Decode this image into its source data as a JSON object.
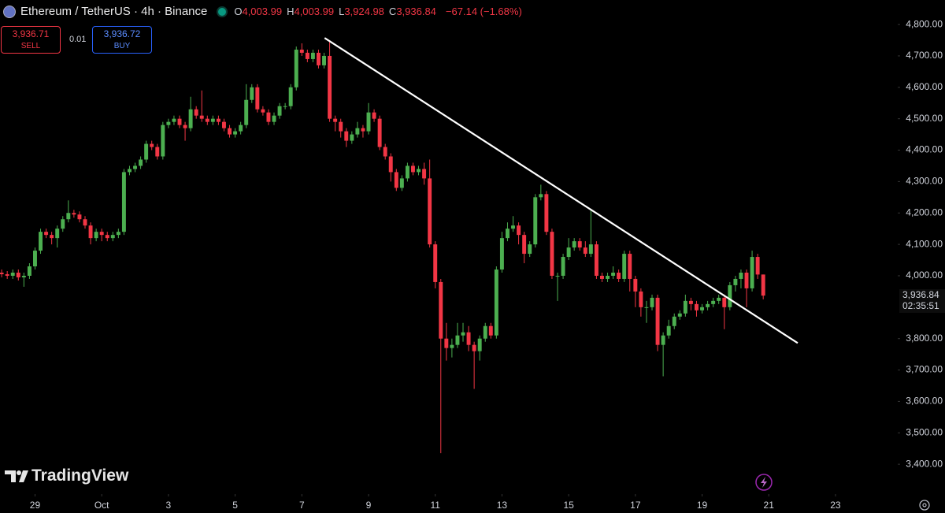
{
  "header": {
    "title": "Ethereum / TetherUS · 4h · Binance",
    "ohlc": [
      {
        "key": "O",
        "value": "4,003.99"
      },
      {
        "key": "H",
        "value": "4,003.99"
      },
      {
        "key": "L",
        "value": "3,924.98"
      },
      {
        "key": "C",
        "value": "3,936.84"
      }
    ],
    "change": "−67.14 (−1.68%)"
  },
  "trade": {
    "sell_price": "3,936.71",
    "sell_label": "SELL",
    "quantity": "0.01",
    "buy_price": "3,936.72",
    "buy_label": "BUY"
  },
  "watermark": "TradingView",
  "last_price_label": {
    "price": "3,936.84",
    "countdown": "02:35:51"
  },
  "chart_data": {
    "type": "candlestick",
    "up_color": "#4caf50",
    "down_color": "#f23645",
    "open": [
      4010,
      4005,
      4000,
      4010,
      3995,
      4000,
      4030,
      4080,
      4140,
      4130,
      4120,
      4150,
      4180,
      4200,
      4195,
      4180,
      4160,
      4120,
      4140,
      4130,
      4120,
      4130,
      4140,
      4330,
      4340,
      4350,
      4370,
      4420,
      4410,
      4380,
      4480,
      4490,
      4500,
      4480,
      4470,
      4530,
      4510,
      4500,
      4490,
      4500,
      4490,
      4470,
      4450,
      4460,
      4480,
      4560,
      4600,
      4530,
      4520,
      4490,
      4510,
      4540,
      4540,
      4600,
      4720,
      4710,
      4690,
      4710,
      4670,
      4700,
      4500,
      4490,
      4460,
      4430,
      4450,
      4470,
      4460,
      4520,
      4500,
      4410,
      4380,
      4330,
      4280,
      4310,
      4350,
      4330,
      4340,
      4310,
      4100,
      3980,
      3800,
      3770,
      3780,
      3810,
      3820,
      3780,
      3760,
      3800,
      3840,
      3810,
      4020,
      4120,
      4150,
      4160,
      4130,
      4070,
      4100,
      4250,
      4260,
      4140,
      4000,
      4000,
      4060,
      4090,
      4110,
      4090,
      4070,
      4100,
      4000,
      3990,
      4000,
      4010,
      3990,
      4070,
      3990,
      3950,
      3900,
      3900,
      3930,
      3780,
      3810,
      3840,
      3870,
      3880,
      3920,
      3910,
      3890,
      3900,
      3910,
      3920,
      3930,
      3900,
      3970,
      3990,
      4010,
      3960,
      4060,
      4003.99
    ],
    "high": [
      4020,
      4015,
      4020,
      4020,
      4010,
      4040,
      4090,
      4150,
      4150,
      4140,
      4160,
      4190,
      4240,
      4210,
      4205,
      4190,
      4170,
      4150,
      4150,
      4140,
      4140,
      4150,
      4340,
      4350,
      4360,
      4380,
      4430,
      4430,
      4420,
      4490,
      4500,
      4510,
      4510,
      4490,
      4570,
      4540,
      4590,
      4510,
      4510,
      4510,
      4500,
      4480,
      4470,
      4490,
      4610,
      4610,
      4610,
      4540,
      4530,
      4520,
      4550,
      4550,
      4610,
      4730,
      4740,
      4720,
      4720,
      4720,
      4710,
      4750,
      4510,
      4500,
      4470,
      4460,
      4490,
      4480,
      4550,
      4530,
      4510,
      4420,
      4390,
      4340,
      4320,
      4360,
      4360,
      4350,
      4360,
      4370,
      4110,
      3990,
      3850,
      3800,
      3850,
      3850,
      3840,
      3790,
      3810,
      3850,
      3850,
      4030,
      4140,
      4170,
      4190,
      4170,
      4140,
      4110,
      4260,
      4290,
      4270,
      4150,
      4010,
      4070,
      4120,
      4120,
      4120,
      4110,
      4210,
      4110,
      4010,
      4010,
      4030,
      4020,
      4080,
      4080,
      4000,
      3960,
      3920,
      3940,
      3940,
      3820,
      3860,
      3880,
      3890,
      3940,
      3930,
      3920,
      3910,
      3920,
      3930,
      3940,
      3940,
      3980,
      4000,
      4020,
      4020,
      4080,
      4070,
      4003.99
    ],
    "low": [
      3995,
      3990,
      3990,
      3985,
      3965,
      3990,
      4020,
      4070,
      4120,
      4100,
      4090,
      4140,
      4170,
      4185,
      4170,
      4150,
      4100,
      4110,
      4110,
      4110,
      4110,
      4120,
      4130,
      4320,
      4330,
      4340,
      4360,
      4400,
      4370,
      4370,
      4470,
      4480,
      4470,
      4430,
      4460,
      4500,
      4490,
      4480,
      4480,
      4480,
      4460,
      4440,
      4440,
      4450,
      4470,
      4550,
      4520,
      4510,
      4480,
      4480,
      4500,
      4530,
      4530,
      4590,
      4700,
      4680,
      4680,
      4660,
      4660,
      4490,
      4460,
      4440,
      4410,
      4420,
      4440,
      4440,
      4450,
      4490,
      4400,
      4370,
      4300,
      4270,
      4270,
      4300,
      4320,
      4320,
      4290,
      4090,
      3960,
      3435,
      3730,
      3740,
      3770,
      3790,
      3760,
      3640,
      3730,
      3790,
      3800,
      3800,
      4010,
      4110,
      4140,
      4100,
      4040,
      4060,
      4090,
      4240,
      4130,
      3990,
      3920,
      3990,
      4050,
      4080,
      4080,
      4060,
      4060,
      3990,
      3980,
      3980,
      3990,
      3980,
      3980,
      3950,
      3900,
      3870,
      3850,
      3890,
      3760,
      3680,
      3800,
      3830,
      3860,
      3870,
      3890,
      3870,
      3880,
      3890,
      3900,
      3910,
      3830,
      3890,
      3950,
      3960,
      3900,
      3950,
      3990,
      3924.98
    ],
    "close": [
      4005,
      4000,
      4010,
      3995,
      4000,
      4030,
      4080,
      4140,
      4130,
      4120,
      4150,
      4180,
      4200,
      4195,
      4180,
      4160,
      4120,
      4140,
      4130,
      4120,
      4130,
      4140,
      4330,
      4340,
      4350,
      4370,
      4420,
      4410,
      4380,
      4480,
      4490,
      4500,
      4480,
      4470,
      4530,
      4510,
      4500,
      4490,
      4500,
      4490,
      4470,
      4450,
      4460,
      4480,
      4560,
      4600,
      4530,
      4520,
      4490,
      4510,
      4540,
      4540,
      4600,
      4720,
      4710,
      4690,
      4710,
      4670,
      4700,
      4500,
      4490,
      4460,
      4430,
      4450,
      4470,
      4460,
      4520,
      4500,
      4410,
      4380,
      4330,
      4280,
      4310,
      4350,
      4330,
      4340,
      4310,
      4100,
      3980,
      3800,
      3770,
      3780,
      3810,
      3820,
      3780,
      3760,
      3800,
      3840,
      3810,
      4020,
      4120,
      4150,
      4160,
      4130,
      4070,
      4100,
      4250,
      4260,
      4140,
      4000,
      4000,
      4060,
      4090,
      4110,
      4090,
      4070,
      4100,
      4000,
      3990,
      4000,
      4010,
      3990,
      4070,
      3990,
      3950,
      3900,
      3900,
      3930,
      3780,
      3810,
      3840,
      3870,
      3880,
      3920,
      3910,
      3890,
      3900,
      3910,
      3920,
      3930,
      3900,
      3970,
      3990,
      4010,
      3960,
      4060,
      4003.99,
      3936.84
    ],
    "trendline": {
      "x": [
        58.1,
        143.2
      ],
      "y": [
        4757,
        3786
      ],
      "color": "#ffffff"
    },
    "xlim": [
      -0.3,
      161.2
    ],
    "xticks": [
      {
        "value": 6,
        "label": "29"
      },
      {
        "value": 18,
        "label": "Oct"
      },
      {
        "value": 30,
        "label": "3"
      },
      {
        "value": 42,
        "label": "5"
      },
      {
        "value": 54,
        "label": "7"
      },
      {
        "value": 66,
        "label": "9"
      },
      {
        "value": 78,
        "label": "11"
      },
      {
        "value": 90,
        "label": "13"
      },
      {
        "value": 102,
        "label": "15"
      },
      {
        "value": 114,
        "label": "17"
      },
      {
        "value": 126,
        "label": "19"
      },
      {
        "value": 138,
        "label": "21"
      },
      {
        "value": 150,
        "label": "23"
      }
    ],
    "ylim": [
      3310,
      4878
    ],
    "yticks": [
      {
        "value": 3400,
        "label": "3,400.00"
      },
      {
        "value": 3500,
        "label": "3,500.00"
      },
      {
        "value": 3600,
        "label": "3,600.00"
      },
      {
        "value": 3700,
        "label": "3,700.00"
      },
      {
        "value": 3800,
        "label": "3,800.00"
      },
      {
        "value": 4000,
        "label": "4,000.00"
      },
      {
        "value": 4100,
        "label": "4,100.00"
      },
      {
        "value": 4200,
        "label": "4,200.00"
      },
      {
        "value": 4300,
        "label": "4,300.00"
      },
      {
        "value": 4400,
        "label": "4,400.00"
      },
      {
        "value": 4500,
        "label": "4,500.00"
      },
      {
        "value": 4600,
        "label": "4,600.00"
      },
      {
        "value": 4700,
        "label": "4,700.00"
      },
      {
        "value": 4800,
        "label": "4,800.00"
      }
    ],
    "grid": false
  }
}
